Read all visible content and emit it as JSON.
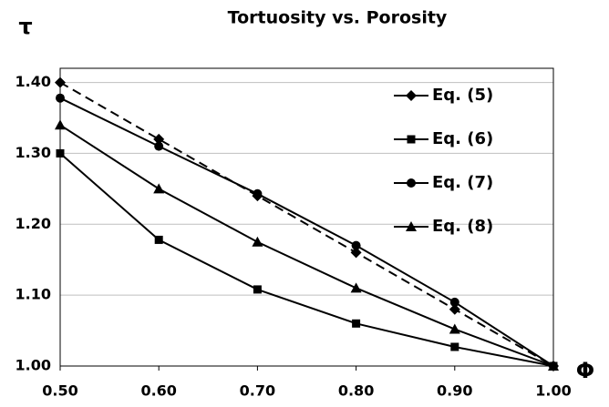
{
  "chart_data": {
    "type": "line",
    "title": "Tortuosity vs. Porosity",
    "y_label": "τ",
    "x_label": "Φ",
    "x": [
      0.5,
      0.6,
      0.7,
      0.8,
      0.9,
      1.0
    ],
    "series": [
      {
        "name": "Eq. (5)",
        "color": "#000000",
        "marker": "diamond",
        "line_style": "dashed",
        "values": [
          1.4,
          1.32,
          1.24,
          1.16,
          1.08,
          1.0
        ]
      },
      {
        "name": "Eq. (6)",
        "color": "#000000",
        "marker": "square",
        "line_style": "solid",
        "values": [
          1.3,
          1.178,
          1.108,
          1.06,
          1.027,
          1.0
        ]
      },
      {
        "name": "Eq. (7)",
        "color": "#000000",
        "marker": "circle",
        "line_style": "solid",
        "values": [
          1.378,
          1.31,
          1.243,
          1.17,
          1.09,
          1.0
        ]
      },
      {
        "name": "Eq. (8)",
        "color": "#000000",
        "marker": "triangle",
        "line_style": "solid",
        "values": [
          1.34,
          1.25,
          1.175,
          1.11,
          1.052,
          1.0
        ]
      }
    ],
    "xlim": [
      0.5,
      1.0
    ],
    "xticks": [
      {
        "value": 0.5,
        "label": "0.50"
      },
      {
        "value": 0.6,
        "label": "0.60"
      },
      {
        "value": 0.7,
        "label": "0.70"
      },
      {
        "value": 0.8,
        "label": "0.80"
      },
      {
        "value": 0.9,
        "label": "0.90"
      },
      {
        "value": 1.0,
        "label": "1.00"
      }
    ],
    "ylim": [
      1.0,
      1.42
    ],
    "yticks": [
      {
        "value": 1.0,
        "label": "1.00"
      },
      {
        "value": 1.1,
        "label": "1.10"
      },
      {
        "value": 1.2,
        "label": "1.20"
      },
      {
        "value": 1.3,
        "label": "1.30"
      },
      {
        "value": 1.4,
        "label": "1.40"
      }
    ],
    "grid": true,
    "legend": "upper right"
  }
}
